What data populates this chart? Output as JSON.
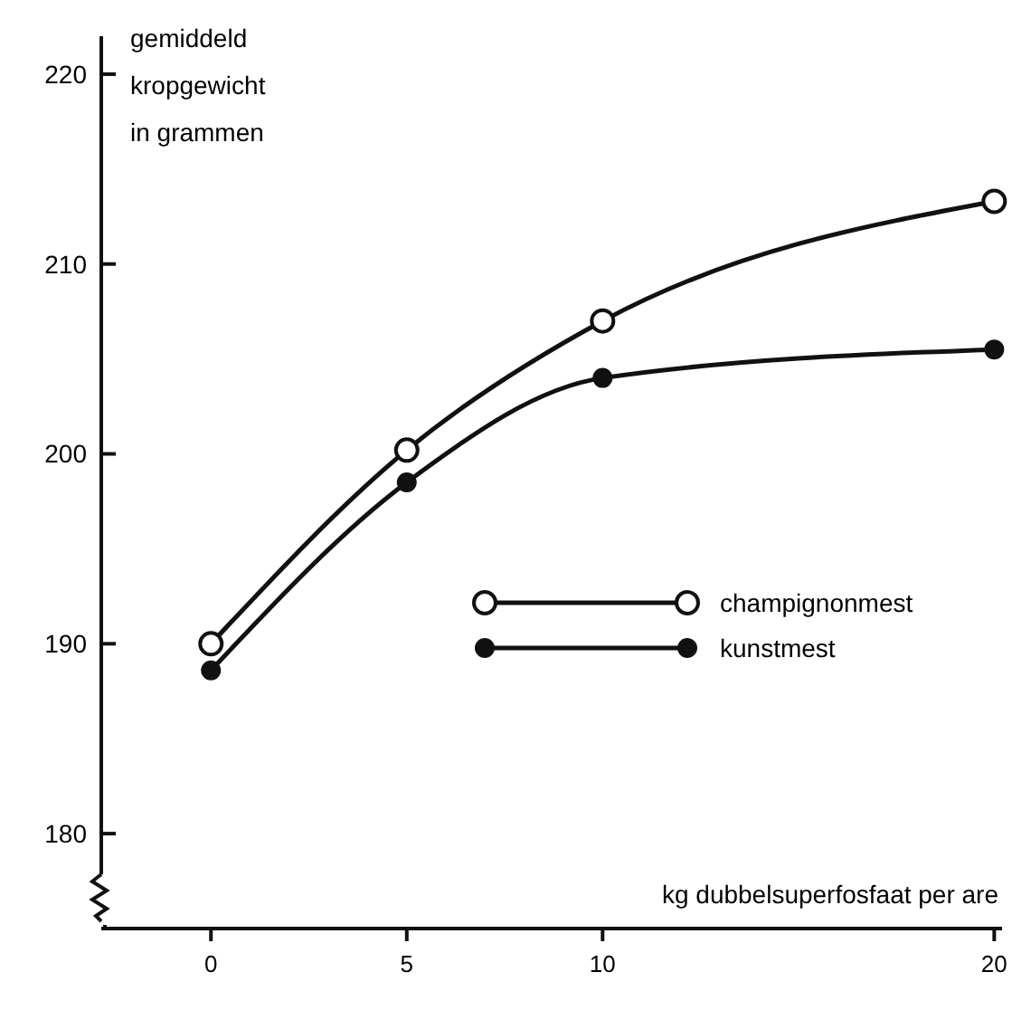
{
  "chart_data": {
    "type": "line",
    "xlabel": "kg dubbelsuperfosfaat per are",
    "ylabel": "gemiddeld kropgewicht in grammen",
    "x": [
      0,
      5,
      10,
      20
    ],
    "series": [
      {
        "name": "champignonmest",
        "color": "#111111",
        "values": [
          190,
          200.2,
          207,
          213.3
        ]
      },
      {
        "name": "kunstmest",
        "color": "#111111",
        "values": [
          188.6,
          198.5,
          204,
          205.5
        ]
      }
    ],
    "xlim": [
      -2.8,
      20.2
    ],
    "ylim": [
      175,
      222
    ],
    "xticks": [
      0,
      5,
      10,
      20
    ],
    "yticks": [
      180,
      190,
      200,
      210,
      220
    ],
    "grid": false,
    "legend": "right",
    "marker": "circle",
    "line_style": "solid"
  }
}
